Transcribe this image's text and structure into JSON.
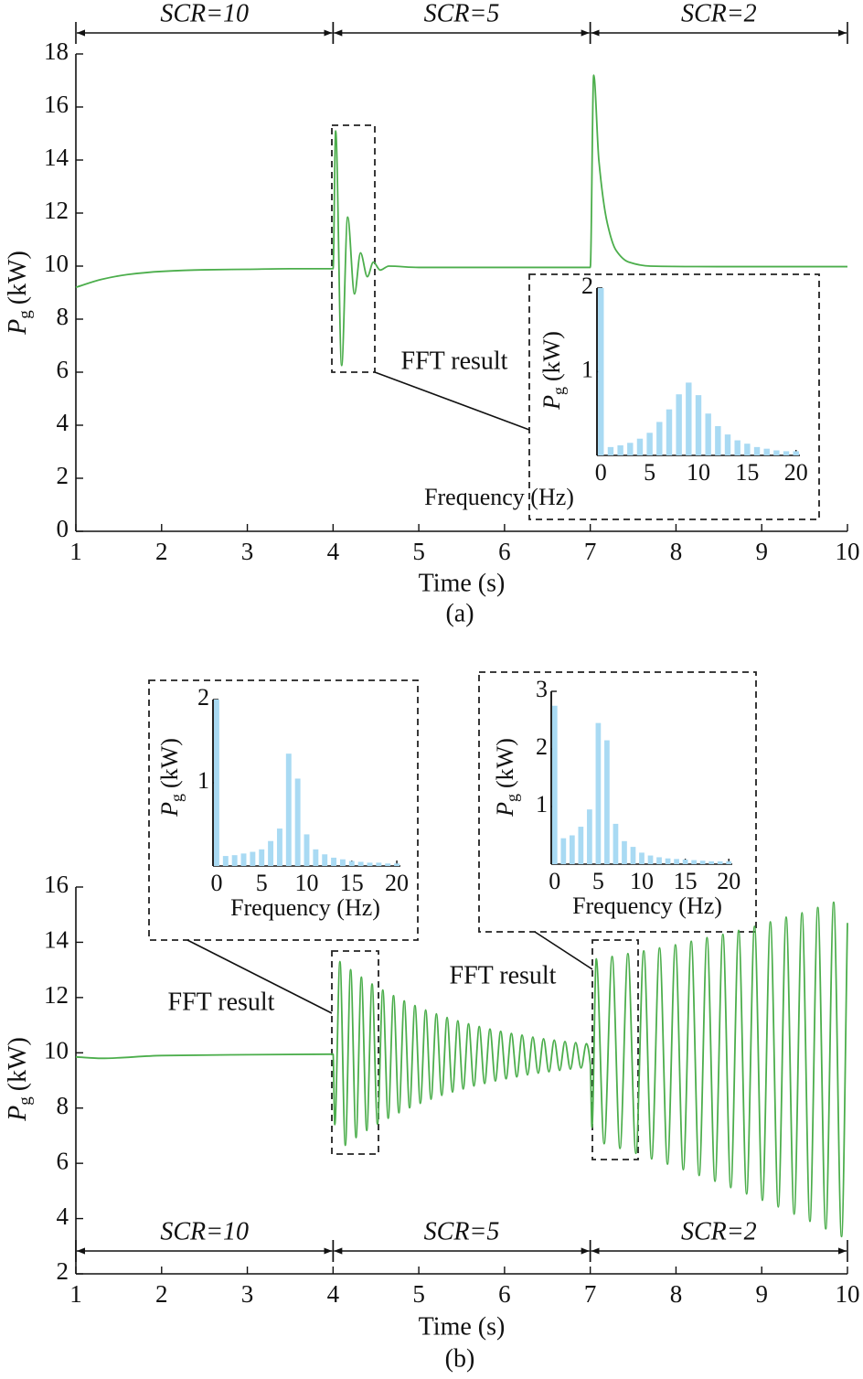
{
  "chart_data": [
    {
      "type": "line",
      "caption": "(a)",
      "xlabel": "Time (s)",
      "ylabel": {
        "symbol": "P",
        "subscript": "g",
        "unit": "(kW)"
      },
      "xlim": [
        1,
        10
      ],
      "xticks": [
        1,
        2,
        3,
        4,
        5,
        6,
        7,
        8,
        9,
        10
      ],
      "ylim": [
        0,
        18
      ],
      "yticks": [
        0,
        2,
        4,
        6,
        8,
        10,
        12,
        14,
        16,
        18
      ],
      "color": "#4cae4c",
      "annotations": [
        "FFT result"
      ],
      "regions": [
        {
          "label": "SCR=10",
          "start": 1,
          "end": 4
        },
        {
          "label": "SCR=5",
          "start": 4,
          "end": 7
        },
        {
          "label": "SCR=2",
          "start": 7,
          "end": 10
        }
      ],
      "x": [
        1.0,
        1.3,
        1.6,
        2.0,
        2.5,
        3.0,
        3.5,
        4.0,
        4.03,
        4.1,
        4.17,
        4.25,
        4.32,
        4.4,
        4.47,
        4.55,
        4.65,
        5.0,
        6.0,
        7.0,
        7.04,
        7.1,
        7.2,
        7.3,
        7.45,
        7.7,
        8.5,
        10.0
      ],
      "values": [
        9.2,
        9.5,
        9.68,
        9.8,
        9.86,
        9.88,
        9.9,
        9.9,
        15.1,
        6.25,
        11.85,
        8.95,
        10.5,
        9.6,
        10.15,
        9.85,
        10.0,
        9.95,
        9.95,
        9.95,
        17.2,
        14.0,
        11.6,
        10.6,
        10.15,
        10.0,
        9.98,
        9.98
      ]
    },
    {
      "type": "bar",
      "xlabel": "Frequency (Hz)",
      "ylabel": {
        "symbol": "P",
        "subscript": "g",
        "unit": "(kW)"
      },
      "xlim": [
        -0.4,
        20.4
      ],
      "xticks": [
        0,
        5,
        10,
        15,
        20
      ],
      "ylim": [
        0,
        2
      ],
      "yticks": [
        1,
        2
      ],
      "color": "#a9daf3",
      "x": [
        0,
        1,
        2,
        3,
        4,
        5,
        6,
        7,
        8,
        9,
        10,
        11,
        12,
        13,
        14,
        15,
        16,
        17,
        18,
        19,
        20
      ],
      "values": [
        2.0,
        0.1,
        0.12,
        0.15,
        0.2,
        0.27,
        0.4,
        0.55,
        0.73,
        0.87,
        0.72,
        0.5,
        0.35,
        0.25,
        0.18,
        0.14,
        0.1,
        0.08,
        0.06,
        0.05,
        0.05
      ]
    },
    {
      "type": "line",
      "caption": "(b)",
      "xlabel": "Time (s)",
      "ylabel": {
        "symbol": "P",
        "subscript": "g",
        "unit": "(kW)"
      },
      "xlim": [
        1,
        10
      ],
      "xticks": [
        1,
        2,
        3,
        4,
        5,
        6,
        7,
        8,
        9,
        10
      ],
      "ylim": [
        2,
        16
      ],
      "yticks": [
        2,
        4,
        6,
        8,
        10,
        12,
        14,
        16
      ],
      "color": "#4cae4c",
      "annotations": [
        "FFT result",
        "FFT result"
      ],
      "regions": [
        {
          "label": "SCR=10",
          "start": 1,
          "end": 4
        },
        {
          "label": "SCR=5",
          "start": 4,
          "end": 7
        },
        {
          "label": "SCR=2",
          "start": 7,
          "end": 10
        }
      ],
      "x": [
        1.0,
        1.3,
        2.0,
        3.0,
        4.0,
        4.02,
        4.08,
        4.143,
        4.205,
        4.268,
        4.33,
        4.393,
        4.455,
        4.518,
        4.58,
        4.643,
        4.705,
        4.768,
        4.83,
        4.893,
        4.955,
        5.018,
        5.08,
        5.143,
        5.205,
        5.268,
        5.33,
        5.393,
        5.455,
        5.518,
        5.58,
        5.643,
        5.705,
        5.768,
        5.83,
        5.893,
        5.955,
        6.018,
        6.08,
        6.143,
        6.205,
        6.268,
        6.33,
        6.393,
        6.455,
        6.518,
        6.58,
        6.643,
        6.705,
        6.768,
        6.83,
        6.893,
        6.955,
        7.0,
        7.02,
        7.07,
        7.162,
        7.255,
        7.347,
        7.439,
        7.532,
        7.624,
        7.716,
        7.808,
        7.901,
        7.993,
        8.085,
        8.178,
        8.27,
        8.362,
        8.455,
        8.547,
        8.639,
        8.731,
        8.824,
        8.916,
        9.008,
        9.101,
        9.193,
        9.285,
        9.378,
        9.47,
        9.562,
        9.654,
        9.747,
        9.839,
        9.931,
        10.0
      ],
      "values": [
        9.85,
        9.8,
        9.9,
        9.93,
        9.95,
        7.4,
        13.3,
        6.65,
        13.01,
        6.93,
        12.74,
        7.19,
        12.49,
        7.42,
        12.27,
        7.63,
        12.07,
        7.83,
        11.88,
        8.01,
        11.71,
        8.17,
        11.55,
        8.32,
        11.41,
        8.46,
        11.28,
        8.58,
        11.16,
        8.69,
        11.05,
        8.8,
        10.95,
        8.89,
        10.86,
        8.98,
        10.78,
        9.06,
        10.7,
        9.13,
        10.64,
        9.2,
        10.57,
        9.26,
        10.51,
        9.31,
        10.46,
        9.36,
        10.41,
        9.41,
        10.37,
        9.45,
        10.33,
        9.6,
        7.3,
        13.4,
        6.71,
        13.49,
        6.54,
        13.59,
        6.36,
        13.69,
        6.16,
        13.8,
        5.97,
        13.91,
        5.77,
        14.04,
        5.56,
        14.17,
        5.35,
        14.29,
        5.12,
        14.43,
        4.89,
        14.58,
        4.66,
        14.74,
        4.42,
        14.91,
        4.16,
        15.07,
        3.9,
        15.26,
        3.63,
        15.45,
        3.35,
        14.7
      ]
    },
    {
      "type": "bar",
      "xlabel": "Frequency (Hz)",
      "ylabel": {
        "symbol": "P",
        "subscript": "g",
        "unit": "(kW)"
      },
      "xlim": [
        -0.4,
        20.4
      ],
      "xticks": [
        0,
        5,
        10,
        15,
        20
      ],
      "ylim": [
        0,
        2
      ],
      "yticks": [
        1,
        2
      ],
      "color": "#a9daf3",
      "x": [
        0,
        1,
        2,
        3,
        4,
        5,
        6,
        7,
        8,
        9,
        10,
        11,
        12,
        13,
        14,
        15,
        16,
        17,
        18,
        19,
        20
      ],
      "values": [
        2.0,
        0.12,
        0.13,
        0.15,
        0.17,
        0.2,
        0.3,
        0.45,
        1.35,
        1.05,
        0.38,
        0.2,
        0.14,
        0.1,
        0.08,
        0.06,
        0.05,
        0.04,
        0.04,
        0.03,
        0.03
      ]
    },
    {
      "type": "bar",
      "xlabel": "Frequency (Hz)",
      "ylabel": {
        "symbol": "P",
        "subscript": "g",
        "unit": "(kW)"
      },
      "xlim": [
        -0.4,
        20.4
      ],
      "xticks": [
        0,
        5,
        10,
        15,
        20
      ],
      "ylim": [
        0,
        3
      ],
      "yticks": [
        1,
        2,
        3
      ],
      "color": "#a9daf3",
      "x": [
        0,
        1,
        2,
        3,
        4,
        5,
        6,
        7,
        8,
        9,
        10,
        11,
        12,
        13,
        14,
        15,
        16,
        17,
        18,
        19,
        20
      ],
      "values": [
        2.75,
        0.45,
        0.5,
        0.65,
        0.95,
        2.45,
        2.15,
        0.7,
        0.4,
        0.3,
        0.2,
        0.15,
        0.12,
        0.1,
        0.09,
        0.08,
        0.07,
        0.06,
        0.05,
        0.05,
        0.05
      ]
    }
  ]
}
